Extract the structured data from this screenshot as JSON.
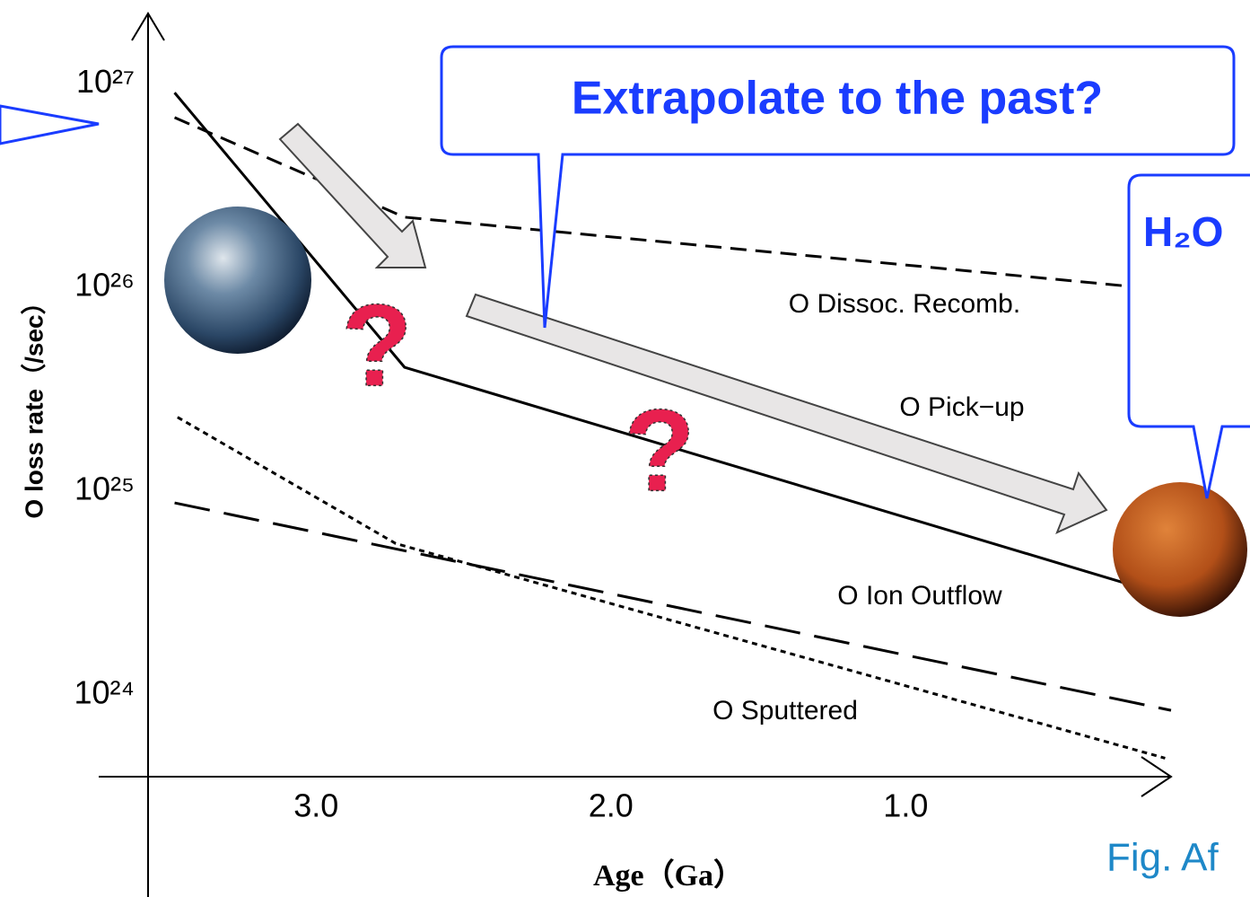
{
  "chart_data": {
    "type": "line",
    "log_y": true,
    "grid": false,
    "y_label": "O loss rate（/sec）",
    "x_label": "Age（Ga）",
    "xlim": [
      3.57,
      0.1
    ],
    "ylim": [
      4.3e+23,
      2.4e+27
    ],
    "xticks": [
      {
        "value": 3,
        "label": "3.0"
      },
      {
        "value": 2,
        "label": "2.0"
      },
      {
        "value": 1,
        "label": "1.0"
      }
    ],
    "yticks": [
      {
        "value": 1e+24,
        "label": "10²⁴"
      },
      {
        "value": 1e+25,
        "label": "10²⁵"
      },
      {
        "value": 1e+26,
        "label": "10²⁶"
      },
      {
        "value": 1e+27,
        "label": "10²⁷"
      }
    ],
    "series": [
      {
        "name": "O Dissoc. Recomb.",
        "color": "#000000",
        "dash": "dashed",
        "x": [
          3.48,
          2.7,
          0.1
        ],
        "values": [
          7.4e+26,
          2.4e+26,
          1.05e+26
        ]
      },
      {
        "name": "O Pick−up",
        "color": "#000000",
        "dash": "solid",
        "x": [
          3.48,
          2.7,
          0.22
        ],
        "values": [
          9.8e+26,
          4.4e+25,
          3.7e+24
        ]
      },
      {
        "name": "O Ion Outflow",
        "color": "#000000",
        "dash": "longdash",
        "x": [
          3.48,
          0.1
        ],
        "values": [
          9.5e+24,
          9.1e+23
        ]
      },
      {
        "name": "O Sputtered",
        "color": "#000000",
        "dash": "dotted",
        "x": [
          3.47,
          2.73,
          0.12
        ],
        "values": [
          2.5e+25,
          6e+24,
          5.3e+23
        ]
      }
    ],
    "annotations": [
      "Extrapolate to the past?",
      "H₂O",
      "Fig. Af",
      "?",
      "?"
    ]
  }
}
